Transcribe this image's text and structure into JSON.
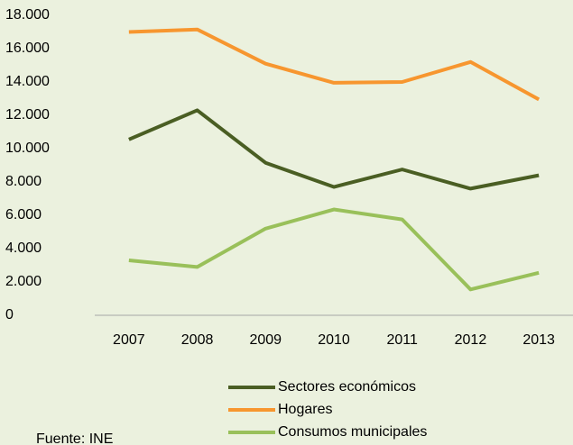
{
  "chart_data": {
    "type": "line",
    "categories": [
      "2007",
      "2008",
      "2009",
      "2010",
      "2011",
      "2012",
      "2013"
    ],
    "series": [
      {
        "name": "Sectores económicos",
        "color": "#4a5e23",
        "values": [
          10550,
          12300,
          9150,
          7700,
          8750,
          7600,
          8400
        ]
      },
      {
        "name": "Hogares",
        "color": "#f7962f",
        "values": [
          17000,
          17150,
          15100,
          13950,
          14000,
          15200,
          12950
        ]
      },
      {
        "name": "Consumos municipales",
        "color": "#99c05a",
        "values": [
          3300,
          2900,
          5200,
          6350,
          5750,
          1550,
          2550
        ]
      }
    ],
    "ylim": [
      0,
      18000
    ],
    "yticks": [
      0,
      {
        "value": 2000,
        "label": "2.000"
      },
      {
        "value": 4000,
        "label": "4.000"
      },
      {
        "value": 6000,
        "label": "6.000"
      },
      {
        "value": 8000,
        "label": "8.000"
      },
      {
        "value": 10000,
        "label": "10.000"
      },
      {
        "value": 12000,
        "label": "12.000"
      },
      {
        "value": 14000,
        "label": "14.000"
      },
      {
        "value": 16000,
        "label": "16.000"
      },
      {
        "value": 18000,
        "label": "18.000"
      }
    ],
    "grid": false,
    "legend": "bottom",
    "source": "Fuente: INE"
  }
}
